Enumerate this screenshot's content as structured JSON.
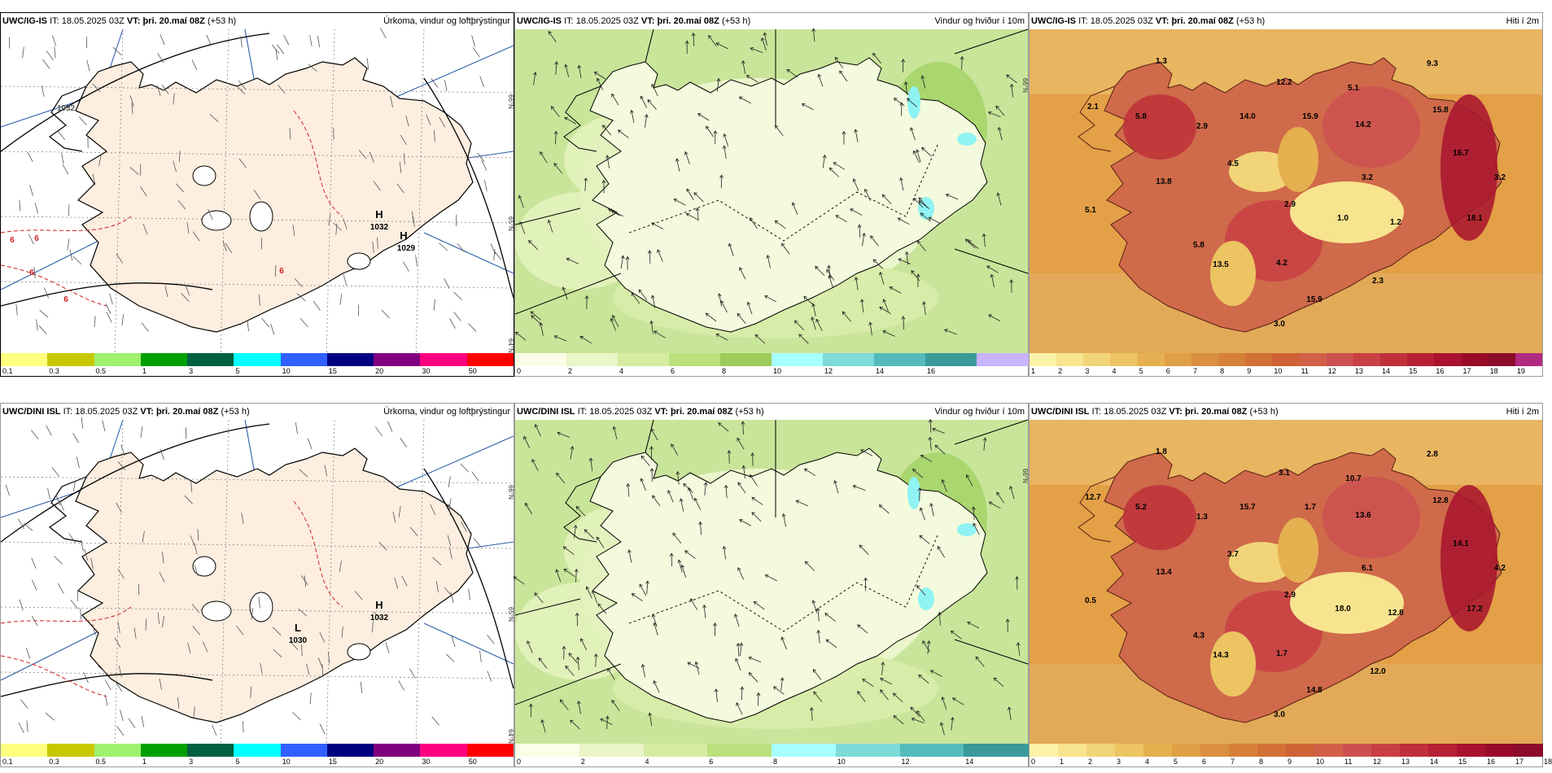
{
  "panels": [
    {
      "model": "UWC/IG-IS",
      "it_label": "IT:",
      "it_value": "18.05.2025 03Z",
      "vt_label": "VT:",
      "vt_value": "þri. 20.maí 08Z",
      "lead": "(+53 h)",
      "product": "Úrkoma, vindur og loftþrýstingur",
      "type": "precip"
    },
    {
      "model": "UWC/IG-IS",
      "it_label": "IT:",
      "it_value": "18.05.2025 03Z",
      "vt_label": "VT:",
      "vt_value": "þri. 20.maí 08Z",
      "lead": "(+53 h)",
      "product": "Vindur og hviður í 10m",
      "type": "wind"
    },
    {
      "model": "UWC/IG-IS",
      "it_label": "IT:",
      "it_value": "18.05.2025 03Z",
      "vt_label": "VT:",
      "vt_value": "þri. 20.maí 08Z",
      "lead": "(+53 h)",
      "product": "Hiti í 2m",
      "type": "temp"
    },
    {
      "model": "UWC/DINI ISL",
      "it_label": "IT:",
      "it_value": "18.05.2025 03Z",
      "vt_label": "VT:",
      "vt_value": "þri. 20.maí 08Z",
      "lead": "(+53 h)",
      "product": "Úrkoma, vindur og loftþrýstingur",
      "type": "precip"
    },
    {
      "model": "UWC/DINI ISL",
      "it_label": "IT:",
      "it_value": "18.05.2025 03Z",
      "vt_label": "VT:",
      "vt_value": "þri. 20.maí 08Z",
      "lead": "(+53 h)",
      "product": "Vindur og hviður í 10m",
      "type": "wind"
    },
    {
      "model": "UWC/DINI ISL",
      "it_label": "IT:",
      "it_value": "18.05.2025 03Z",
      "vt_label": "VT:",
      "vt_value": "þri. 20.maí 08Z",
      "lead": "(+53 h)",
      "product": "Hiti í 2m",
      "type": "temp"
    }
  ],
  "pressure_labels": [
    [
      {
        "sym": "H",
        "val": "1032"
      },
      {
        "sym": "H",
        "val": "1029"
      }
    ],
    [
      {
        "sym": "H",
        "val": "1032"
      },
      {
        "sym": "L",
        "val": "1030"
      }
    ]
  ],
  "precip_extra_labels": [
    "1032",
    "6",
    "6",
    "6",
    "6",
    "6"
  ],
  "lat_labels": [
    "66°N",
    "65°N",
    "64°N"
  ],
  "temp_labels_top": [
    "1.3",
    "9.3",
    "12.2",
    "5.1",
    "2.1",
    "5.8",
    "2.9",
    "14.0",
    "15.9",
    "15.8",
    "14.2",
    "16.7",
    "4.5",
    "13.8",
    "3.2",
    "3.2",
    "2.9",
    "5.1",
    "1.0",
    "1.2",
    "18.1",
    "5.8",
    "13.5",
    "4.2",
    "2.3",
    "15.9",
    "3.0"
  ],
  "temp_labels_bottom": [
    "1.8",
    "2.8",
    "3.1",
    "10.7",
    "12.7",
    "5.2",
    "1.3",
    "15.7",
    "1.7",
    "12.8",
    "13.6",
    "14.1",
    "3.7",
    "13.4",
    "6.1",
    "4.2",
    "2.9",
    "0.5",
    "18.0",
    "12.8",
    "17.2",
    "4.3",
    "14.3",
    "1.7",
    "12.0",
    "14.8",
    "3.0"
  ],
  "legends": {
    "precip": {
      "colors": [
        "#ffff80",
        "#c8c800",
        "#a0f070",
        "#00a000",
        "#006040",
        "#00ffff",
        "#3060ff",
        "#000080",
        "#800080",
        "#ff0080",
        "#ff0000"
      ],
      "ticks": [
        "0.1",
        "0.3",
        "0.5",
        "1",
        "3",
        "5",
        "10",
        "15",
        "20",
        "30",
        "50"
      ]
    },
    "wind_top": {
      "colors": [
        "#fbfde6",
        "#eaf5c8",
        "#d5eca2",
        "#bbe07e",
        "#9ccc5a",
        "#a8ffff",
        "#7fdada",
        "#55baba",
        "#3a9a9a",
        "#c8b4ff"
      ],
      "ticks": [
        "0",
        "2",
        "4",
        "6",
        "8",
        "10",
        "12",
        "14",
        "16"
      ]
    },
    "wind_bottom": {
      "colors": [
        "#fbfde6",
        "#eaf5c8",
        "#d5eca2",
        "#bbe07e",
        "#a8ffff",
        "#7fdada",
        "#55baba",
        "#3a9a9a"
      ],
      "ticks": [
        "0",
        "2",
        "4",
        "6",
        "8",
        "10",
        "12",
        "14"
      ]
    },
    "temp_top": {
      "colors": [
        "#fdf3a8",
        "#f8e48f",
        "#f2d478",
        "#ecc462",
        "#e5b04f",
        "#dfa046",
        "#da9040",
        "#d6803a",
        "#d27036",
        "#ce6234",
        "#d26048",
        "#cc5050",
        "#c84044",
        "#c0303a",
        "#b52034",
        "#a8122e",
        "#980a28",
        "#8c0a2a",
        "#b02a80"
      ],
      "ticks": [
        "1",
        "2",
        "3",
        "4",
        "5",
        "6",
        "7",
        "8",
        "9",
        "10",
        "11",
        "12",
        "13",
        "14",
        "15",
        "16",
        "17",
        "18",
        "19"
      ]
    },
    "temp_bottom": {
      "colors": [
        "#fdf3a8",
        "#f8e48f",
        "#f2d478",
        "#ecc462",
        "#e5b04f",
        "#dfa046",
        "#da9040",
        "#d6803a",
        "#d27036",
        "#ce6234",
        "#d26048",
        "#cc5050",
        "#c84044",
        "#c0303a",
        "#b52034",
        "#a8122e",
        "#980a28",
        "#8c0a2a"
      ],
      "ticks": [
        "0",
        "1",
        "2",
        "3",
        "4",
        "5",
        "6",
        "7",
        "8",
        "9",
        "10",
        "11",
        "12",
        "13",
        "14",
        "15",
        "16",
        "17",
        "18"
      ]
    }
  }
}
